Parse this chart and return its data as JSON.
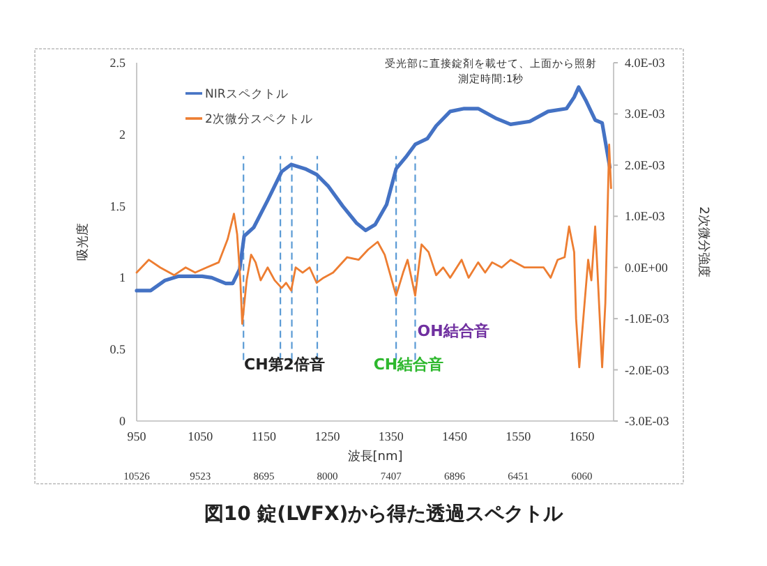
{
  "chart_data": {
    "type": "line",
    "title": "図10 錠(LVFX)から得た透過スペクトル",
    "xlabel": "波長[nm]",
    "ylabel": "吸光度",
    "y2label": "2次微分強度",
    "legend": "top left",
    "xlim": [
      950,
      1700
    ],
    "xticks": [
      950,
      1050,
      1150,
      1250,
      1350,
      1450,
      1550,
      1650
    ],
    "ylim": [
      0,
      2.5
    ],
    "yticks": [
      0,
      0.5,
      1,
      1.5,
      2,
      2.5
    ],
    "y2lim": [
      -0.003,
      0.004
    ],
    "y2ticks": [
      {
        "value": -0.003,
        "label": "-3.0E-03"
      },
      {
        "value": -0.002,
        "label": "-2.0E-03"
      },
      {
        "value": -0.001,
        "label": "-1.0E-03"
      },
      {
        "value": 0,
        "label": "0.0E+00"
      },
      {
        "value": 0.001,
        "label": "1.0E-03"
      },
      {
        "value": 0.002,
        "label": "2.0E-03"
      },
      {
        "value": 0.003,
        "label": "3.0E-03"
      },
      {
        "value": 0.004,
        "label": "4.0E-03"
      }
    ],
    "series": [
      {
        "name": "NIRスペクトル",
        "color": "#4472c4",
        "x": [
          950,
          972,
          994,
          1016,
          1053,
          1068,
          1090,
          1101,
          1112,
          1119,
          1134,
          1156,
          1178,
          1193,
          1215,
          1233,
          1251,
          1274,
          1296,
          1310,
          1325,
          1343,
          1358,
          1373,
          1388,
          1407,
          1421,
          1443,
          1465,
          1487,
          1516,
          1538,
          1568,
          1597,
          1626,
          1638,
          1645,
          1656,
          1671,
          1682,
          1689,
          1694
        ],
        "values": [
          0.91,
          0.91,
          0.98,
          1.01,
          1.01,
          1.0,
          0.96,
          0.96,
          1.06,
          1.29,
          1.35,
          1.54,
          1.74,
          1.79,
          1.76,
          1.72,
          1.64,
          1.5,
          1.38,
          1.33,
          1.37,
          1.51,
          1.76,
          1.84,
          1.93,
          1.97,
          2.06,
          2.16,
          2.18,
          2.18,
          2.11,
          2.07,
          2.09,
          2.16,
          2.18,
          2.26,
          2.33,
          2.24,
          2.1,
          2.08,
          1.9,
          1.77
        ]
      },
      {
        "name": "2次微分スペクトル",
        "color": "#ed7d31",
        "axis": "y2",
        "x": [
          950,
          969,
          987,
          1009,
          1027,
          1042,
          1060,
          1079,
          1093,
          1103,
          1108,
          1113,
          1116,
          1123,
          1130,
          1137,
          1145,
          1156,
          1167,
          1178,
          1185,
          1193,
          1200,
          1211,
          1222,
          1233,
          1244,
          1259,
          1281,
          1299,
          1314,
          1329,
          1340,
          1358,
          1369,
          1376,
          1388,
          1398,
          1409,
          1421,
          1432,
          1443,
          1461,
          1472,
          1487,
          1498,
          1509,
          1524,
          1538,
          1560,
          1575,
          1590,
          1601,
          1612,
          1623,
          1630,
          1638,
          1641,
          1646,
          1652,
          1660,
          1665,
          1671,
          1674,
          1682,
          1687,
          1693,
          1696
        ],
        "values": [
          -0.0001,
          0.00015,
          0,
          -0.00015,
          0,
          -0.0001,
          0,
          0.0001,
          0.00055,
          0.00105,
          0.00065,
          -0.00025,
          -0.0011,
          -0.00025,
          0.00025,
          0.0001,
          -0.00025,
          0,
          -0.00025,
          -0.0004,
          -0.0003,
          -0.00045,
          0,
          -0.0001,
          0,
          -0.0003,
          -0.0002,
          -0.0001,
          0.0002,
          0.00015,
          0.00035,
          0.0005,
          0.00025,
          -0.00055,
          -0.0001,
          0.00015,
          -0.00055,
          0.00045,
          0.0003,
          -0.00015,
          0,
          -0.0002,
          0.00015,
          -0.0002,
          0.0001,
          -0.0001,
          0.0001,
          0,
          0.00015,
          0,
          0,
          0,
          -0.0002,
          0.00015,
          0.0002,
          0.0008,
          0.0003,
          -0.001,
          -0.00195,
          -0.00105,
          0.00015,
          -0.00025,
          0.0008,
          0.0001,
          -0.00195,
          -0.0007,
          0.0024,
          0.00155
        ]
      }
    ],
    "ref_lines": [
      {
        "axis": "x",
        "value": 1118,
        "color": "#5b9bd5",
        "line_style": "dashed"
      },
      {
        "axis": "x",
        "value": 1176,
        "color": "#5b9bd5",
        "line_style": "dashed"
      },
      {
        "axis": "x",
        "value": 1194,
        "color": "#5b9bd5",
        "line_style": "dashed"
      },
      {
        "axis": "x",
        "value": 1234,
        "color": "#5b9bd5",
        "line_style": "dashed"
      },
      {
        "axis": "x",
        "value": 1358,
        "color": "#5b9bd5",
        "line_style": "dashed"
      },
      {
        "axis": "x",
        "value": 1388,
        "color": "#5b9bd5",
        "line_style": "dashed"
      }
    ],
    "annotations": [
      "受光部に直接錠剤を載せて、上面から照射",
      "測定時間:1秒",
      "CH第2倍音",
      "CH結合音",
      "OH結合音",
      "10526",
      "9523",
      "8695",
      "8000",
      "7407",
      "6896",
      "6451",
      "6060"
    ]
  }
}
